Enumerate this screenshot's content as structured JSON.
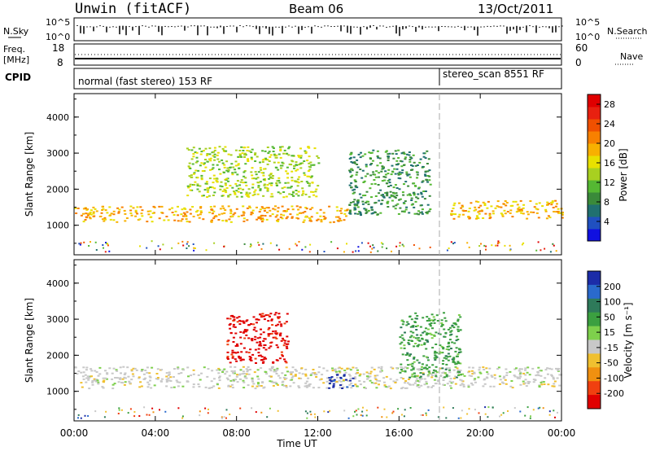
{
  "header": {
    "station": "Unwin (fitACF)",
    "beam": "Beam 06",
    "date": "13/Oct/2011"
  },
  "aux_panels": {
    "nsky_label": "N.Sky",
    "nsky_ticks": [
      "10^5",
      "10^0"
    ],
    "nsearch_label": "N.Search",
    "nsearch_ticks": [
      "10^5",
      "10^0"
    ],
    "freq_label": "Freq.",
    "freq_unit": "[MHz]",
    "freq_ticks": [
      "18",
      "8"
    ],
    "nave_label": "Nave",
    "nave_ticks": [
      "60",
      "0"
    ],
    "cpid_label": "CPID",
    "cpid_segments": [
      {
        "label": "normal (fast stereo) 153 RF",
        "start_hour": 0.0
      },
      {
        "label": "stereo_scan 8551 RF",
        "start_hour": 18.0
      }
    ]
  },
  "colorbars": {
    "power": {
      "label": "Power [dB]",
      "ticks": [
        "4",
        "8",
        "12",
        "16",
        "20",
        "24",
        "28"
      ],
      "colors": [
        "#1010e0",
        "#2050c0",
        "#207070",
        "#3a8a3a",
        "#55b833",
        "#a8d020",
        "#e8e000",
        "#f8b000",
        "#f88000",
        "#f05000",
        "#e82010",
        "#e00000"
      ]
    },
    "velocity": {
      "label": "Velocity [m s⁻¹]",
      "ticks": [
        "200",
        "100",
        "50",
        "15",
        "-15",
        "-50",
        "-100",
        "-200"
      ],
      "colors": [
        "#1c2ca8",
        "#2a6acc",
        "#2e7a5a",
        "#3ba040",
        "#7ed04c",
        "#c8c8c8",
        "#f0c030",
        "#f09010",
        "#f04010",
        "#e00000"
      ]
    }
  },
  "chart_data": [
    {
      "type": "heatmap",
      "title": "Power",
      "xlabel": "Time UT",
      "ylabel": "Slant Range [km]",
      "x_ticks": [
        "00:00",
        "04:00",
        "08:00",
        "12:00",
        "16:00",
        "20:00",
        "00:00"
      ],
      "y_ticks": [
        "1000",
        "2000",
        "3000",
        "4000"
      ],
      "xlim_hours": [
        0,
        24
      ],
      "ylim_km": [
        180,
        4650
      ],
      "colorbar_range_db": [
        0,
        30
      ],
      "features": [
        {
          "name": "main echo band",
          "start_hour": 0.0,
          "end_hour": 13.5,
          "range_km": [
            1100,
            1550
          ],
          "power_db": 20
        },
        {
          "name": "upper scatter",
          "start_hour": 5.5,
          "end_hour": 12.0,
          "range_km": [
            1800,
            3200
          ],
          "power_db": 14
        },
        {
          "name": "rising arc",
          "start_hour": 13.5,
          "end_hour": 17.5,
          "range_km": [
            1300,
            3100
          ],
          "power_db": 8
        },
        {
          "name": "post-midnight band",
          "start_hour": 18.5,
          "end_hour": 24.0,
          "range_km": [
            1200,
            1700
          ],
          "power_db": 18
        }
      ]
    },
    {
      "type": "heatmap",
      "title": "Velocity",
      "xlabel": "Time UT",
      "ylabel": "Slant Range [km]",
      "x_ticks": [
        "00:00",
        "04:00",
        "08:00",
        "12:00",
        "16:00",
        "20:00",
        "00:00"
      ],
      "y_ticks": [
        "1000",
        "2000",
        "3000",
        "4000"
      ],
      "xlim_hours": [
        0,
        24
      ],
      "ylim_km": [
        180,
        4650
      ],
      "colorbar_range_ms": [
        -200,
        200
      ],
      "features": [
        {
          "name": "low-velocity band",
          "start_hour": 0.0,
          "end_hour": 24.0,
          "range_km": [
            1100,
            1700
          ],
          "velocity_ms": 0
        },
        {
          "name": "strong receding region",
          "start_hour": 7.5,
          "end_hour": 10.5,
          "range_km": [
            1800,
            3200
          ],
          "velocity_ms": -200
        },
        {
          "name": "approaching patch",
          "start_hour": 12.5,
          "end_hour": 13.8,
          "range_km": [
            1100,
            1500
          ],
          "velocity_ms": 180
        },
        {
          "name": "positive arc",
          "start_hour": 16.0,
          "end_hour": 19.0,
          "range_km": [
            1400,
            3200
          ],
          "velocity_ms": 40
        }
      ]
    }
  ]
}
